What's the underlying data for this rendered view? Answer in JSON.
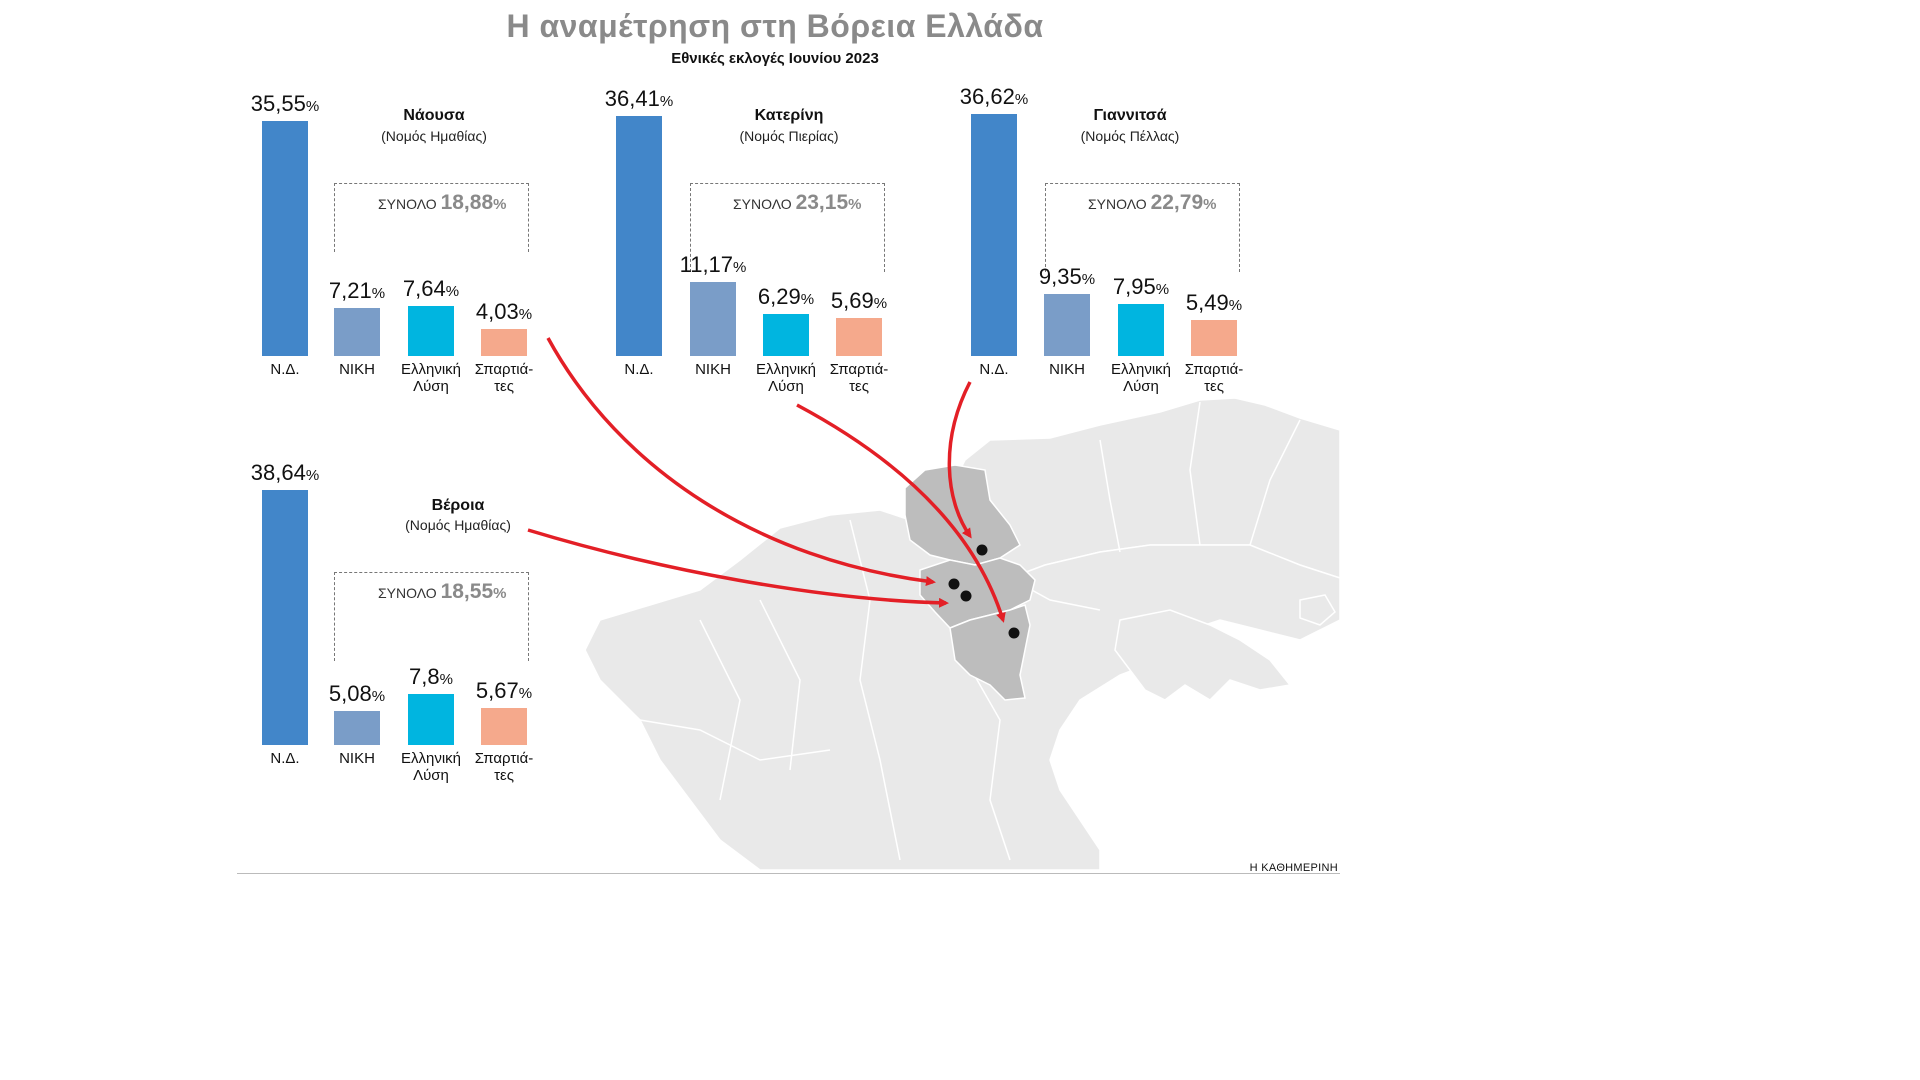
{
  "title": "Η αναμέτρηση στη Βόρεια Ελλάδα",
  "subtitle": "Εθνικές εκλογές Ιουνίου 2023",
  "source": "Η ΚΑΘΗΜΕΡΙΝΗ",
  "total_label": "ΣΥΝΟΛΟ",
  "percent_sign": "%",
  "colors": {
    "nd": "#4286c9",
    "niki": "#7a9dc8",
    "ellas": "#00b5e0",
    "sparti": "#f5a98c",
    "arrow": "#e31f26",
    "map_land": "#e9e9e9",
    "map_highlight": "#bdbdbd",
    "map_border": "#ffffff"
  },
  "chart_data": [
    {
      "type": "bar",
      "place": "Νάουσα",
      "prefecture": "(Νομός Ημαθίας)",
      "categories": [
        "Ν.Δ.",
        "ΝΙΚΗ",
        "Ελληνική\nΛύση",
        "Σπαρτιά-\nτες"
      ],
      "values": [
        35.55,
        7.21,
        7.64,
        4.03
      ],
      "value_labels": [
        "35,55",
        "7,21",
        "7,64",
        "4,03"
      ],
      "total": "18,88",
      "ylim": [
        0,
        40
      ]
    },
    {
      "type": "bar",
      "place": "Κατερίνη",
      "prefecture": "(Νομός Πιερίας)",
      "categories": [
        "Ν.Δ.",
        "ΝΙΚΗ",
        "Ελληνική\nΛύση",
        "Σπαρτιά-\nτες"
      ],
      "values": [
        36.41,
        11.17,
        6.29,
        5.69
      ],
      "value_labels": [
        "36,41",
        "11,17",
        "6,29",
        "5,69"
      ],
      "total": "23,15",
      "ylim": [
        0,
        40
      ]
    },
    {
      "type": "bar",
      "place": "Γιαννιτσά",
      "prefecture": "(Νομός Πέλλας)",
      "categories": [
        "Ν.Δ.",
        "ΝΙΚΗ",
        "Ελληνική\nΛύση",
        "Σπαρτιά-\nτες"
      ],
      "values": [
        36.62,
        9.35,
        7.95,
        5.49
      ],
      "value_labels": [
        "36,62",
        "9,35",
        "7,95",
        "5,49"
      ],
      "total": "22,79",
      "ylim": [
        0,
        40
      ]
    },
    {
      "type": "bar",
      "place": "Βέροια",
      "prefecture": "(Νομός Ημαθίας)",
      "categories": [
        "Ν.Δ.",
        "ΝΙΚΗ",
        "Ελληνική\nΛύση",
        "Σπαρτιά-\nτες"
      ],
      "values": [
        38.64,
        5.08,
        7.8,
        5.67
      ],
      "value_labels": [
        "38,64",
        "5,08",
        "7,8",
        "5,67"
      ],
      "total": "18,55",
      "ylim": [
        0,
        40
      ]
    }
  ]
}
